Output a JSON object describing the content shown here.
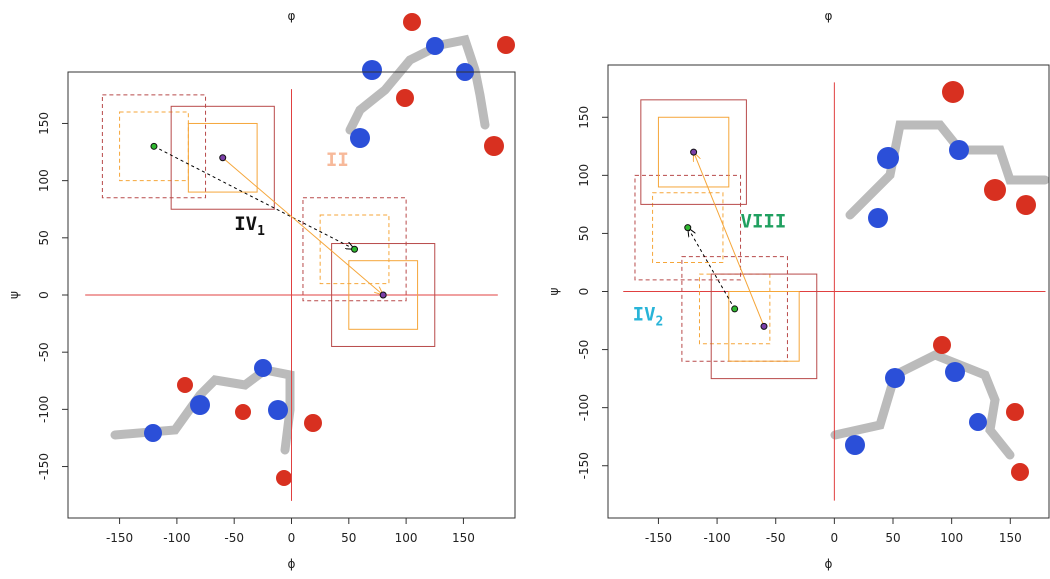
{
  "chart_data": [
    {
      "type": "scatter",
      "title": "φ",
      "xlabel": "ϕ",
      "ylabel": "ψ",
      "xlim": [
        -195,
        195
      ],
      "ylim": [
        -195,
        195
      ],
      "xticks": [
        -150,
        -100,
        -50,
        0,
        50,
        100,
        150
      ],
      "yticks": [
        -150,
        -100,
        -50,
        0,
        50,
        100,
        150
      ],
      "crosshair": {
        "color": "#e04040",
        "range": [
          -180,
          180
        ]
      },
      "box_sizes": [
        90,
        60
      ],
      "box_colors": [
        "#b84a4a",
        "#f5a63a"
      ],
      "series": [
        {
          "color": "#2fb82f",
          "box_style": "dashed",
          "line_color": "#000000",
          "line_style": "dashed",
          "x": [
            -120,
            55
          ],
          "values": [
            130,
            40
          ]
        },
        {
          "color": "#7a3fa8",
          "box_style": "solid",
          "line_color": "#f5a63a",
          "line_style": "solid",
          "x": [
            -60,
            80
          ],
          "values": [
            120,
            0
          ]
        }
      ],
      "annotations": [
        {
          "text": "II",
          "x": 30,
          "y": 113,
          "color": "#f7b99a"
        },
        {
          "text": "IV",
          "sub": "1",
          "x": -50,
          "y": 57,
          "color": "#111111"
        }
      ]
    },
    {
      "type": "scatter",
      "title": "φ",
      "xlabel": "ϕ",
      "ylabel": "ψ",
      "xlim": [
        -193,
        183
      ],
      "ylim": [
        -195,
        195
      ],
      "xticks": [
        -150,
        -100,
        -50,
        0,
        50,
        100,
        150
      ],
      "yticks": [
        -150,
        -100,
        -50,
        0,
        50,
        100,
        150
      ],
      "crosshair": {
        "color": "#e04040",
        "range": [
          -180,
          180
        ]
      },
      "box_sizes": [
        90,
        60
      ],
      "box_colors": [
        "#b84a4a",
        "#f5a63a"
      ],
      "series": [
        {
          "color": "#2fb82f",
          "box_style": "dashed",
          "line_color": "#000000",
          "line_style": "dashed",
          "x": [
            -85,
            -125
          ],
          "values": [
            -15,
            55
          ]
        },
        {
          "color": "#7a3fa8",
          "box_style": "solid",
          "line_color": "#f5a63a",
          "line_style": "solid",
          "x": [
            -60,
            -120
          ],
          "values": [
            -30,
            120
          ]
        }
      ],
      "annotations": [
        {
          "text": "VIII",
          "x": -80,
          "y": 55,
          "color": "#20a060"
        },
        {
          "text": "IV",
          "sub": "2",
          "x": -172,
          "y": -25,
          "color": "#28b4d8"
        }
      ]
    }
  ]
}
